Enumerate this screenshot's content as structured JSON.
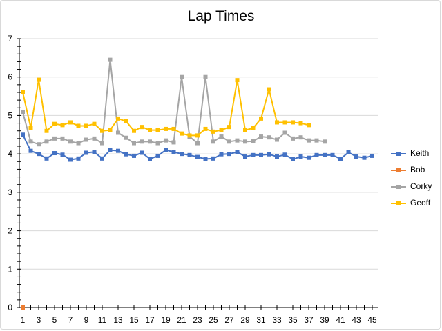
{
  "chart_data": {
    "type": "line",
    "title": "Lap Times",
    "xlabel": "",
    "ylabel": "",
    "ylim": [
      0,
      7
    ],
    "yticks": [
      0,
      1,
      2,
      3,
      4,
      5,
      6,
      7
    ],
    "xlim": [
      1,
      45
    ],
    "xticks": [
      1,
      3,
      5,
      7,
      9,
      11,
      13,
      15,
      17,
      19,
      21,
      23,
      25,
      27,
      29,
      31,
      33,
      35,
      37,
      39,
      41,
      43,
      45
    ],
    "grid": "horizontal",
    "legend_position": "right",
    "series": [
      {
        "name": "Keith",
        "color": "#4472C4",
        "x": [
          1,
          2,
          3,
          4,
          5,
          6,
          7,
          8,
          9,
          10,
          11,
          12,
          13,
          14,
          15,
          16,
          17,
          18,
          19,
          20,
          21,
          22,
          23,
          24,
          25,
          26,
          27,
          28,
          29,
          30,
          31,
          32,
          33,
          34,
          35,
          36,
          37,
          38,
          39,
          40,
          41,
          42,
          43,
          44,
          45
        ],
        "values": [
          4.5,
          4.08,
          4.0,
          3.88,
          4.02,
          3.98,
          3.85,
          3.88,
          4.03,
          4.05,
          3.88,
          4.1,
          4.08,
          3.99,
          3.95,
          4.03,
          3.87,
          3.95,
          4.1,
          4.05,
          4.0,
          3.97,
          3.92,
          3.87,
          3.88,
          3.99,
          4.0,
          4.05,
          3.93,
          3.97,
          3.97,
          3.99,
          3.93,
          3.98,
          3.86,
          3.93,
          3.9,
          3.97,
          3.97,
          3.97,
          3.87,
          4.04,
          3.93,
          3.9,
          3.95
        ]
      },
      {
        "name": "Bob",
        "color": "#ED7D31",
        "x": [
          1
        ],
        "values": [
          0
        ]
      },
      {
        "name": "Corky",
        "color": "#A5A5A5",
        "x": [
          1,
          2,
          3,
          4,
          5,
          6,
          7,
          8,
          9,
          10,
          11,
          12,
          13,
          14,
          15,
          16,
          17,
          18,
          19,
          20,
          21,
          22,
          23,
          24,
          25,
          26,
          27,
          28,
          29,
          30,
          31,
          32,
          33,
          34,
          35,
          36,
          37,
          38,
          39
        ],
        "values": [
          5.08,
          4.32,
          4.25,
          4.32,
          4.4,
          4.4,
          4.32,
          4.28,
          4.37,
          4.4,
          4.28,
          6.45,
          4.55,
          4.42,
          4.28,
          4.32,
          4.32,
          4.28,
          4.35,
          4.3,
          6.0,
          4.45,
          4.28,
          6.0,
          4.32,
          4.45,
          4.32,
          4.35,
          4.32,
          4.33,
          4.45,
          4.43,
          4.37,
          4.55,
          4.4,
          4.43,
          4.35,
          4.35,
          4.32
        ]
      },
      {
        "name": "Geoff",
        "color": "#FFC000",
        "x": [
          1,
          2,
          3,
          4,
          5,
          6,
          7,
          8,
          9,
          10,
          11,
          12,
          13,
          14,
          15,
          16,
          17,
          18,
          19,
          20,
          21,
          22,
          23,
          24,
          25,
          26,
          27,
          28,
          29,
          30,
          31,
          32,
          33,
          34,
          35,
          36,
          37
        ],
        "values": [
          5.6,
          4.68,
          5.93,
          4.6,
          4.78,
          4.75,
          4.82,
          4.73,
          4.73,
          4.78,
          4.6,
          4.62,
          4.92,
          4.85,
          4.6,
          4.7,
          4.62,
          4.62,
          4.65,
          4.65,
          4.53,
          4.48,
          4.48,
          4.65,
          4.58,
          4.62,
          4.7,
          5.92,
          4.62,
          4.67,
          4.92,
          5.68,
          4.82,
          4.82,
          4.82,
          4.8,
          4.75
        ]
      }
    ]
  }
}
